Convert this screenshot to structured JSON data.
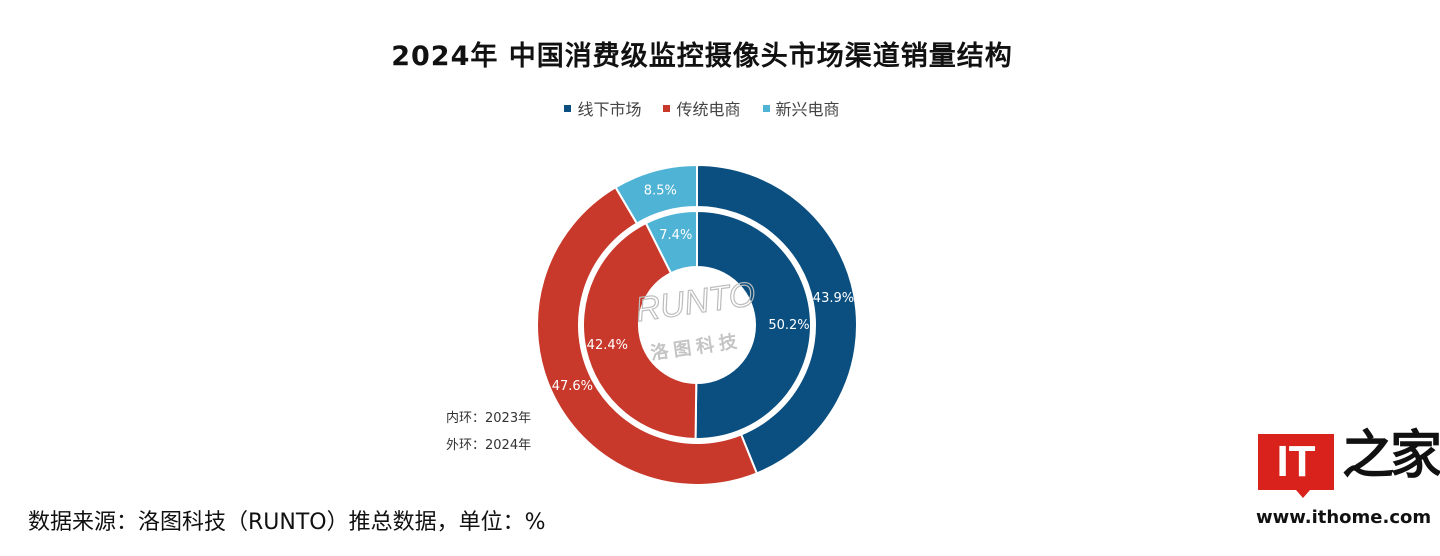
{
  "chart_data": {
    "type": "pie",
    "subtype": "double-donut",
    "title": "2024年 中国消费级监控摄像头市场渠道销量结构",
    "legend_position": "top",
    "categories": [
      "线下市场",
      "传统电商",
      "新兴电商"
    ],
    "colors": [
      "#0b4f80",
      "#c8392b",
      "#4fb3d6"
    ],
    "series": [
      {
        "name": "2023年",
        "ring": "inner",
        "values": [
          50.2,
          42.4,
          7.4
        ],
        "labels": [
          "50.2%",
          "42.4%",
          "7.4%"
        ]
      },
      {
        "name": "2024年",
        "ring": "outer",
        "values": [
          43.9,
          47.6,
          8.5
        ],
        "labels": [
          "43.9%",
          "47.6%",
          "8.5%"
        ]
      }
    ],
    "ring_notes": [
      "内环：2023年",
      "外环：2024年"
    ],
    "watermark": [
      "RUNTO",
      "洛图科技"
    ]
  },
  "source_note": "数据来源：洛图科技（RUNTO）推总数据，单位：%",
  "brand": {
    "logo_text": "IT",
    "logo_chars": "之家",
    "site": "www.ithome.com"
  }
}
